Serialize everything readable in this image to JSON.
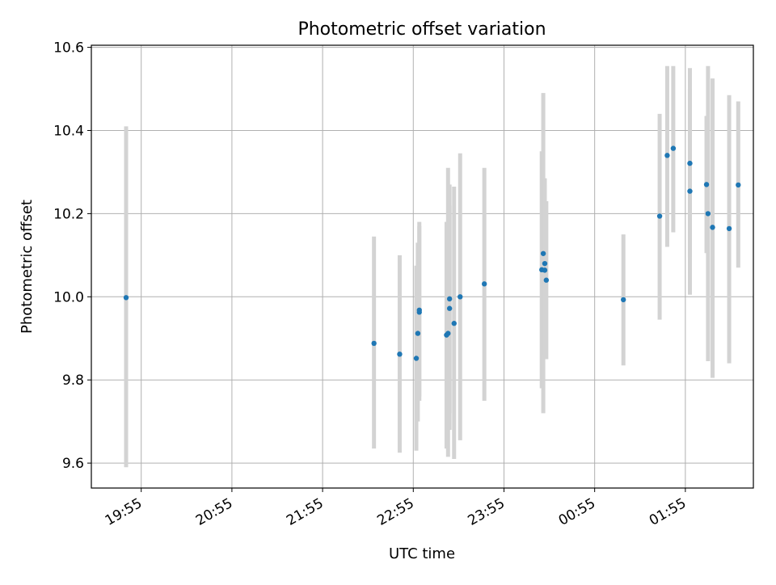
{
  "chart_data": {
    "type": "scatter",
    "title": "Photometric offset variation",
    "xlabel": "UTC time",
    "ylabel": "Photometric offset",
    "x_ticks": [
      "19:55",
      "20:55",
      "21:55",
      "22:55",
      "23:55",
      "00:55",
      "01:55"
    ],
    "y_ticks": [
      "9.6",
      "9.8",
      "10.0",
      "10.2",
      "10.4",
      "10.6"
    ],
    "ylim": [
      9.54,
      10.605
    ],
    "grid": true,
    "points": [
      {
        "x": "19:45",
        "y": 9.998,
        "err_low": 9.59,
        "err_high": 10.41
      },
      {
        "x": "22:29",
        "y": 9.888,
        "err_low": 9.635,
        "err_high": 10.145
      },
      {
        "x": "22:46",
        "y": 9.862,
        "err_low": 9.625,
        "err_high": 10.1
      },
      {
        "x": "22:57",
        "y": 9.852,
        "err_low": 9.63,
        "err_high": 10.075
      },
      {
        "x": "22:58",
        "y": 9.912,
        "err_low": 9.7,
        "err_high": 10.13
      },
      {
        "x": "22:59",
        "y": 9.963,
        "err_low": 9.75,
        "err_high": 10.18
      },
      {
        "x": "22:59",
        "y": 9.968,
        "err_low": 9.76,
        "err_high": 10.17
      },
      {
        "x": "23:17",
        "y": 9.908,
        "err_low": 9.635,
        "err_high": 10.18
      },
      {
        "x": "23:18",
        "y": 9.912,
        "err_low": 9.615,
        "err_high": 10.31
      },
      {
        "x": "23:19",
        "y": 9.972,
        "err_low": 9.68,
        "err_high": 10.27
      },
      {
        "x": "23:19",
        "y": 9.995,
        "err_low": 9.72,
        "err_high": 10.22
      },
      {
        "x": "23:22",
        "y": 9.936,
        "err_low": 9.61,
        "err_high": 10.265
      },
      {
        "x": "23:26",
        "y": 10.0,
        "err_low": 9.655,
        "err_high": 10.345
      },
      {
        "x": "23:42",
        "y": 10.031,
        "err_low": 9.75,
        "err_high": 10.31
      },
      {
        "x": "00:20",
        "y": 10.065,
        "err_low": 9.78,
        "err_high": 10.35
      },
      {
        "x": "00:21",
        "y": 10.104,
        "err_low": 9.72,
        "err_high": 10.49
      },
      {
        "x": "00:22",
        "y": 10.08,
        "err_low": 9.87,
        "err_high": 10.285
      },
      {
        "x": "00:22",
        "y": 10.064,
        "err_low": 9.86,
        "err_high": 10.27
      },
      {
        "x": "00:23",
        "y": 10.04,
        "err_low": 9.85,
        "err_high": 10.23
      },
      {
        "x": "01:14",
        "y": 9.993,
        "err_low": 9.835,
        "err_high": 10.15
      },
      {
        "x": "01:38",
        "y": 10.194,
        "err_low": 9.945,
        "err_high": 10.44
      },
      {
        "x": "01:43",
        "y": 10.34,
        "err_low": 10.12,
        "err_high": 10.555
      },
      {
        "x": "01:47",
        "y": 10.357,
        "err_low": 10.155,
        "err_high": 10.555
      },
      {
        "x": "01:58",
        "y": 10.254,
        "err_low": 10.005,
        "err_high": 10.5
      },
      {
        "x": "01:58",
        "y": 10.321,
        "err_low": 10.095,
        "err_high": 10.55
      },
      {
        "x": "02:09",
        "y": 10.27,
        "err_low": 10.105,
        "err_high": 10.435
      },
      {
        "x": "02:10",
        "y": 10.2,
        "err_low": 9.845,
        "err_high": 10.555
      },
      {
        "x": "02:13",
        "y": 10.167,
        "err_low": 9.805,
        "err_high": 10.525
      },
      {
        "x": "02:24",
        "y": 10.164,
        "err_low": 9.84,
        "err_high": 10.485
      },
      {
        "x": "02:30",
        "y": 10.269,
        "err_low": 10.07,
        "err_high": 10.47
      }
    ],
    "colors": {
      "marker": "#1f77b4",
      "errorbar": "#d3d3d3",
      "grid": "#b0b0b0",
      "axes": "#000000"
    }
  }
}
